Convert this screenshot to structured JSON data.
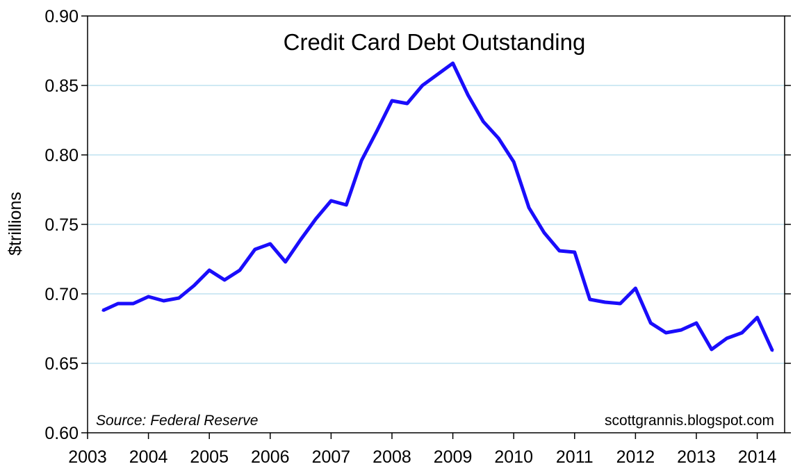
{
  "chart_data": {
    "type": "line",
    "title": "Credit Card Debt Outstanding",
    "ylabel": "$trillions",
    "xlabel": "",
    "xlim": [
      2003.0,
      2014.45
    ],
    "ylim": [
      0.6,
      0.9
    ],
    "grid": true,
    "legend": "none",
    "x_ticks": [
      2003,
      2004,
      2005,
      2006,
      2007,
      2008,
      2009,
      2010,
      2011,
      2012,
      2013,
      2014
    ],
    "x_tick_labels": [
      "2003",
      "2004",
      "2005",
      "2006",
      "2007",
      "2008",
      "2009",
      "2010",
      "2011",
      "2012",
      "2013",
      "2014"
    ],
    "y_ticks": [
      0.6,
      0.65,
      0.7,
      0.75,
      0.8,
      0.85,
      0.9
    ],
    "y_tick_labels": [
      "0.60",
      "0.65",
      "0.70",
      "0.75",
      "0.80",
      "0.85",
      "0.90"
    ],
    "annotations": {
      "source": "Source: Federal Reserve",
      "credit": "scottgrannis.blogspot.com"
    },
    "colors": {
      "line": "#1a0dfb",
      "grid": "#9fd3ea",
      "axis": "#000000"
    },
    "series": [
      {
        "x": [
          2003.25,
          2003.5,
          2003.75,
          2004.0,
          2004.25,
          2004.5,
          2004.75,
          2005.0,
          2005.25,
          2005.5,
          2005.75,
          2006.0,
          2006.25,
          2006.5,
          2006.75,
          2007.0,
          2007.25,
          2007.5,
          2007.75,
          2008.0,
          2008.25,
          2008.5,
          2008.75,
          2009.0,
          2009.25,
          2009.5,
          2009.75,
          2010.0,
          2010.25,
          2010.5,
          2010.75,
          2011.0,
          2011.25,
          2011.5,
          2011.75,
          2012.0,
          2012.25,
          2012.5,
          2012.75,
          2013.0,
          2013.25,
          2013.5,
          2013.75,
          2014.0,
          2014.25
        ],
        "values": [
          0.688,
          0.693,
          0.693,
          0.698,
          0.695,
          0.697,
          0.706,
          0.717,
          0.71,
          0.717,
          0.732,
          0.736,
          0.723,
          0.739,
          0.754,
          0.767,
          0.764,
          0.796,
          0.817,
          0.839,
          0.837,
          0.85,
          0.858,
          0.866,
          0.843,
          0.824,
          0.812,
          0.795,
          0.762,
          0.744,
          0.731,
          0.73,
          0.696,
          0.694,
          0.693,
          0.704,
          0.679,
          0.672,
          0.674,
          0.679,
          0.66,
          0.668,
          0.672,
          0.683,
          0.659
        ]
      }
    ]
  }
}
